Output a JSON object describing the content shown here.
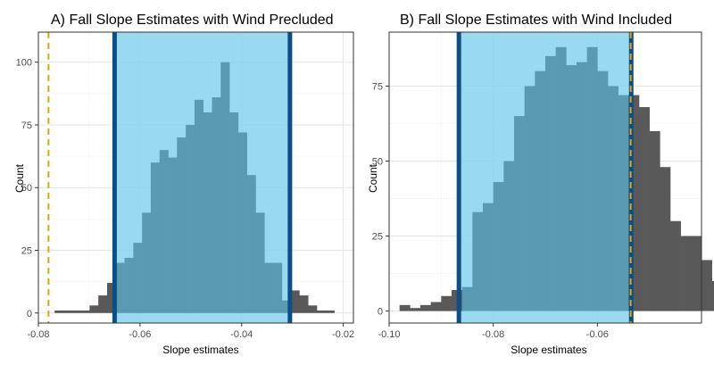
{
  "chart_data": [
    {
      "type": "histogram",
      "title": "A) Fall Slope Estimates with Wind Precluded",
      "xlabel": "Slope estimates",
      "ylabel": "Count",
      "xlim": [
        -0.08,
        -0.018
      ],
      "ylim": [
        -4,
        112
      ],
      "x_ticks": [
        -0.08,
        -0.06,
        -0.04,
        -0.02
      ],
      "x_tick_labels": [
        "-0.08",
        "-0.06",
        "-0.04",
        "-0.02"
      ],
      "y_ticks": [
        0,
        25,
        50,
        75,
        100
      ],
      "y_tick_labels": [
        "0",
        "25",
        "50",
        "75",
        "100"
      ],
      "grid": true,
      "bin_start": -0.0768,
      "bin_width": 0.00172,
      "counts": [
        1,
        1,
        1,
        1,
        3,
        7,
        12,
        20,
        22,
        28,
        40,
        60,
        65,
        62,
        70,
        75,
        85,
        80,
        86,
        100,
        80,
        72,
        55,
        40,
        20,
        20,
        5,
        9,
        7,
        3,
        1,
        1
      ],
      "interval": [
        -0.065,
        -0.0305
      ],
      "reference_line": -0.078,
      "colors": {
        "bars": "#595959",
        "interval_fill": "#87d3ee",
        "interval_bars": "#5b9bb1",
        "interval_lines": "#0b4f86",
        "reference_line": "#e5a50a"
      }
    },
    {
      "type": "histogram",
      "title": "B) Fall Slope Estimates with Wind Included",
      "xlabel": "Slope estimates",
      "ylabel": "Count",
      "xlim": [
        -0.1,
        -0.04
      ],
      "ylim": [
        -4,
        93
      ],
      "x_ticks": [
        -0.1,
        -0.08,
        -0.06
      ],
      "x_tick_labels": [
        "-0.10",
        "-0.08",
        "-0.06"
      ],
      "y_ticks": [
        0,
        25,
        50,
        75
      ],
      "y_tick_labels": [
        "0",
        "25",
        "50",
        "75"
      ],
      "grid": true,
      "bin_start": -0.098,
      "bin_width": 0.002,
      "counts": [
        2,
        1,
        2,
        3,
        5,
        7,
        8,
        33,
        36,
        43,
        50,
        65,
        75,
        80,
        85,
        88,
        82,
        83,
        88,
        80,
        75,
        72,
        72,
        68,
        60,
        48,
        30,
        25,
        25,
        17,
        10,
        6,
        5,
        4,
        2
      ],
      "interval": [
        -0.0866,
        -0.0535
      ],
      "reference_line": -0.0536,
      "colors": {
        "bars": "#595959",
        "interval_fill": "#87d3ee",
        "interval_bars": "#5b9bb1",
        "interval_lines": "#0b4f86",
        "reference_line": "#e5a50a"
      }
    }
  ]
}
